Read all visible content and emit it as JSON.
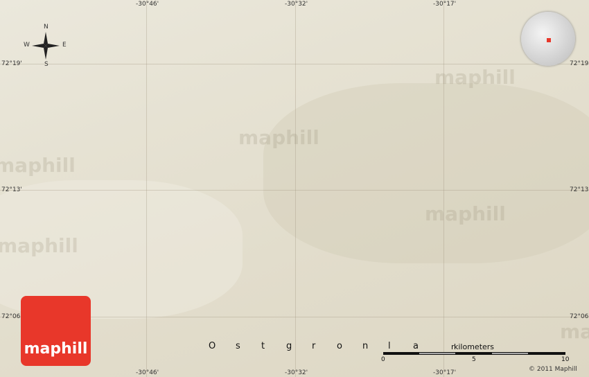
{
  "longitudes": [
    "-30°46'",
    "-30°32'",
    "-30°17'"
  ],
  "latitudes": [
    "72°19'",
    "72°13'",
    "72°06'"
  ],
  "compass": {
    "n": "N",
    "s": "S",
    "e": "E",
    "w": "W"
  },
  "region_letters": [
    "O",
    "s",
    "t",
    "g",
    "r",
    "o",
    "n",
    "l",
    "a",
    "r"
  ],
  "scale": {
    "unit": "kilometers",
    "ticks": [
      "0",
      "5",
      "10"
    ]
  },
  "watermark": "maphill",
  "logo": "maphill",
  "copyright": "© 2011 Maphill",
  "colors": {
    "logo": "#e8372a",
    "background": "#e6e2d3"
  }
}
